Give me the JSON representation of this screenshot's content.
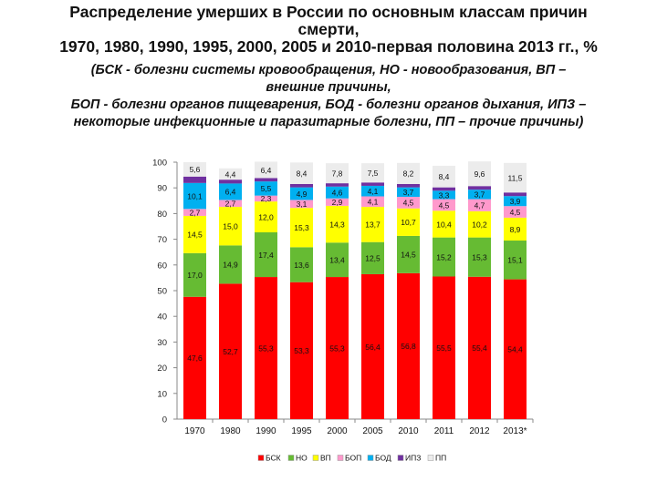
{
  "title_lines": [
    "Распределение умерших в России по основным классам причин",
    "смерти,",
    "1970, 1980, 1990, 1995, 2000, 2005 и 2010-первая половина 2013 гг., %"
  ],
  "subtitle_lines": [
    "(БСК - болезни системы кровообращения, НО - новообразования, ВП –",
    "внешние причины,",
    "БОП - болезни органов пищеварения, БОД - болезни органов дыхания, ИПЗ –",
    "некоторые инфекционные и паразитарные болезни, ПП – прочие причины)"
  ],
  "chart_data": {
    "type": "bar",
    "stacked": true,
    "categories": [
      "1970",
      "1980",
      "1990",
      "1995",
      "2000",
      "2005",
      "2010",
      "2011",
      "2012",
      "2013*"
    ],
    "ylim": [
      0,
      100
    ],
    "yticks": [
      0,
      10,
      20,
      30,
      40,
      50,
      60,
      70,
      80,
      90,
      100
    ],
    "legend_position": "bottom",
    "grid": false,
    "series": [
      {
        "name": "БСК",
        "color": "#ff0000",
        "values": [
          47.6,
          52.7,
          55.3,
          53.3,
          55.3,
          56.4,
          56.8,
          55.5,
          55.4,
          54.4
        ],
        "labels": [
          "47,6",
          "52,7",
          "55,3",
          "53,3",
          "55,3",
          "56,4",
          "56,8",
          "55,5",
          "55,4",
          "54,4"
        ]
      },
      {
        "name": "НО",
        "color": "#66bb33",
        "values": [
          17.0,
          14.9,
          17.4,
          13.6,
          13.4,
          12.5,
          14.5,
          15.2,
          15.3,
          15.1
        ],
        "labels": [
          "17,0",
          "14,9",
          "17,4",
          "13,6",
          "13,4",
          "12,5",
          "14,5",
          "15,2",
          "15,3",
          "15,1"
        ]
      },
      {
        "name": "ВП",
        "color": "#ffff00",
        "values": [
          14.5,
          15.0,
          12.0,
          15.3,
          14.3,
          13.7,
          10.7,
          10.4,
          10.2,
          8.9
        ],
        "labels": [
          "14,5",
          "15,0",
          "12,0",
          "15,3",
          "14,3",
          "13,7",
          "10,7",
          "10,4",
          "10,2",
          "8,9"
        ]
      },
      {
        "name": "БОП",
        "color": "#ff99cc",
        "values": [
          2.7,
          2.7,
          2.3,
          3.1,
          2.9,
          4.1,
          4.5,
          4.5,
          4.7,
          4.5
        ],
        "labels": [
          "2,7",
          "2,7",
          "2,3",
          "3,1",
          "2,9",
          "4,1",
          "4,5",
          "4,5",
          "4,7",
          "4,5"
        ]
      },
      {
        "name": "БОД",
        "color": "#00b0f0",
        "values": [
          10.1,
          6.4,
          5.5,
          4.9,
          4.6,
          4.1,
          3.7,
          3.3,
          3.7,
          3.9
        ],
        "labels": [
          "10,1",
          "6,4",
          "5,5",
          "4,9",
          "4,6",
          "4,1",
          "3,7",
          "3,3",
          "3,7",
          "3,9"
        ]
      },
      {
        "name": "ИПЗ",
        "color": "#7030a0",
        "values": [
          2.5,
          1.5,
          1.3,
          1.3,
          1.3,
          1.3,
          1.3,
          1.3,
          1.4,
          1.4
        ],
        "labels": null
      },
      {
        "name": "ПП",
        "color": "#ececec",
        "values": [
          5.6,
          4.4,
          6.4,
          8.4,
          7.8,
          7.5,
          8.2,
          8.4,
          9.6,
          11.5
        ],
        "labels": [
          "5,6",
          "4,4",
          "6,4",
          "8,4",
          "7,8",
          "7,5",
          "8,2",
          "8,4",
          "9,6",
          "11,5"
        ]
      }
    ]
  }
}
